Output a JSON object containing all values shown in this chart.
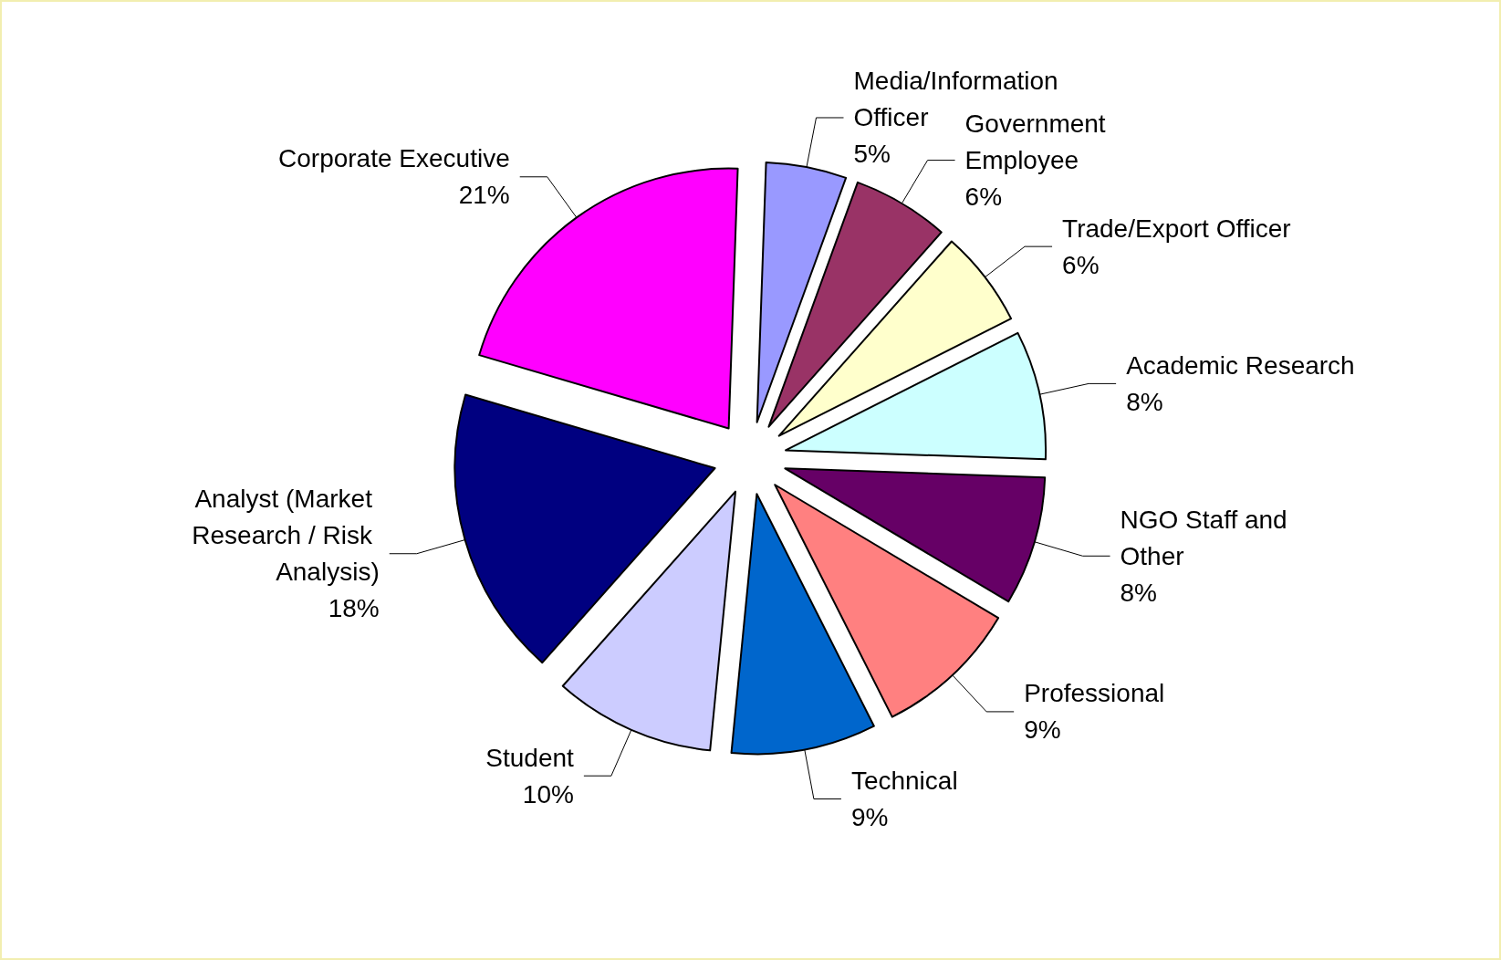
{
  "chart_data": {
    "type": "pie",
    "categories": [
      "Media/Information Officer",
      "Government Employee",
      "Trade/Export Officer",
      "Academic Research",
      "NGO Staff and Other",
      "Professional",
      "Technical",
      "Student",
      "Analyst (Market Research / Risk Analysis)",
      "Corporate Executive"
    ],
    "values": [
      5,
      6,
      6,
      8,
      8,
      9,
      9,
      10,
      18,
      21
    ],
    "value_labels": [
      "5%",
      "6%",
      "6%",
      "8%",
      "8%",
      "9%",
      "9%",
      "10%",
      "18%",
      "21%"
    ],
    "colors": [
      "#9999ff",
      "#993366",
      "#ffffcc",
      "#ccffff",
      "#660066",
      "#ff8080",
      "#0066cc",
      "#ccccff",
      "#000080",
      "#ff00ff"
    ],
    "legend": false
  }
}
